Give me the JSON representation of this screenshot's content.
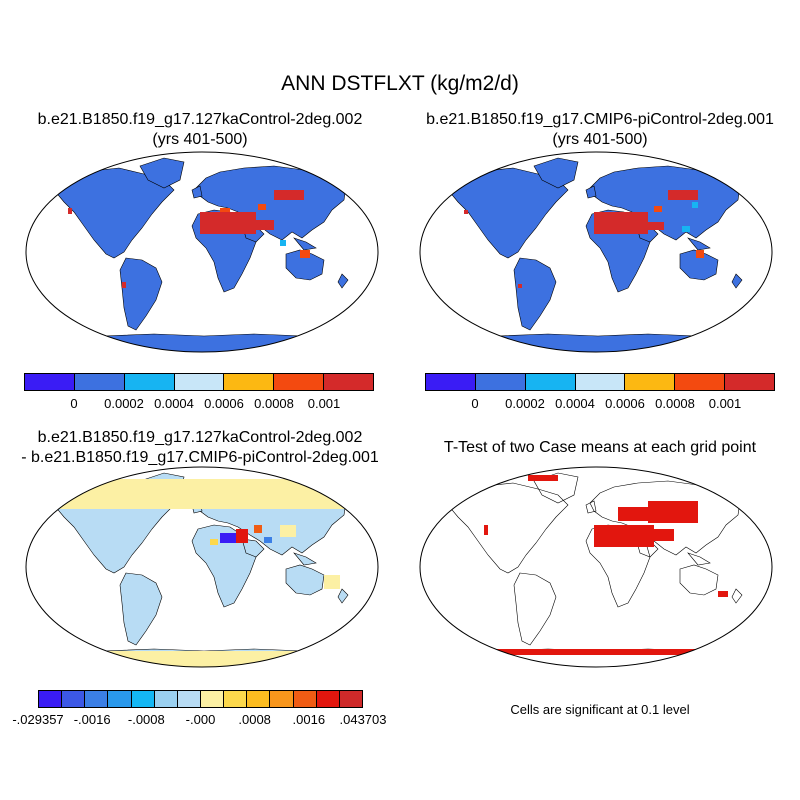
{
  "title": "ANN DSTFLXT (kg/m2/d)",
  "panels": {
    "p1": {
      "line1": "b.e21.B1850.f19_g17.127kaControl-2deg.002",
      "line2": "(yrs 401-500)"
    },
    "p2": {
      "line1": "b.e21.B1850.f19_g17.CMIP6-piControl-2deg.001",
      "line2": "(yrs 401-500)"
    },
    "p3": {
      "line1": "b.e21.B1850.f19_g17.127kaControl-2deg.002",
      "line2": "- b.e21.B1850.f19_g17.CMIP6-piControl-2deg.001"
    },
    "p4": {
      "line1": "T-Test of two Case means at each grid point"
    }
  },
  "colorbar_top": {
    "colors": [
      "#3a1cf5",
      "#3d71e0",
      "#17b4f2",
      "#c8e6f8",
      "#fcb812",
      "#f34a10",
      "#d42a2a"
    ],
    "labels": [
      "0",
      "0.0002",
      "0.0004",
      "0.0006",
      "0.0008",
      "0.001"
    ]
  },
  "colorbar_diff": {
    "colors": [
      "#3a1cf5",
      "#3c58e6",
      "#3b7fe6",
      "#2a99ec",
      "#14b7f4",
      "#9ad0f0",
      "#b8dcf4",
      "#fcf0a4",
      "#fcd84c",
      "#fcbc20",
      "#f8961c",
      "#f05c14",
      "#e2160e",
      "#cf2a2a"
    ],
    "labels": [
      "-.029357",
      "-.0016",
      "-.0008",
      "-.000",
      ".0008",
      ".0016",
      ".043703"
    ]
  },
  "significance_note": "Cells are significant at 0.1 level",
  "legend_colors": {
    "land_fill": "#3d71e0",
    "dust_high": "#d42a2a",
    "dust_mid": "#f34a10",
    "significant": "#e2160e"
  }
}
